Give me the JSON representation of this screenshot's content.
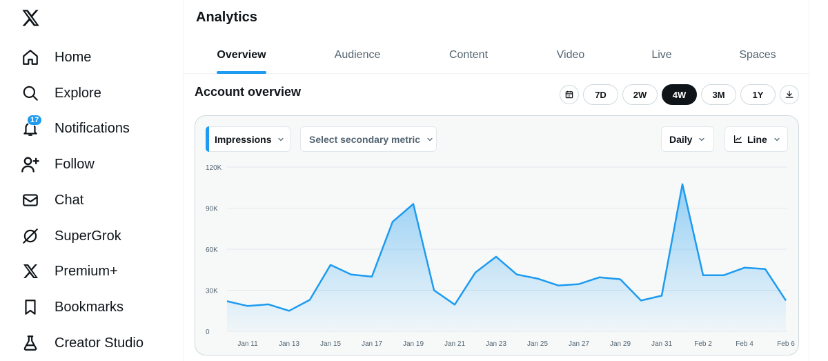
{
  "sidebar": {
    "logo": "x-logo-icon",
    "items": [
      {
        "label": "Home",
        "icon": "home-icon"
      },
      {
        "label": "Explore",
        "icon": "search-icon"
      },
      {
        "label": "Notifications",
        "icon": "bell-icon",
        "badge": "17"
      },
      {
        "label": "Follow",
        "icon": "add-user-icon"
      },
      {
        "label": "Chat",
        "icon": "mail-icon"
      },
      {
        "label": "SuperGrok",
        "icon": "grok-icon"
      },
      {
        "label": "Premium+",
        "icon": "x-logo-icon"
      },
      {
        "label": "Bookmarks",
        "icon": "bookmark-icon"
      },
      {
        "label": "Creator Studio",
        "icon": "flask-icon"
      }
    ]
  },
  "header": {
    "title": "Analytics"
  },
  "tabs": [
    {
      "label": "Overview",
      "active": true
    },
    {
      "label": "Audience",
      "active": false
    },
    {
      "label": "Content",
      "active": false
    },
    {
      "label": "Video",
      "active": false
    },
    {
      "label": "Live",
      "active": false
    },
    {
      "label": "Spaces",
      "active": false
    }
  ],
  "overview": {
    "title": "Account overview",
    "ranges": [
      "7D",
      "2W",
      "4W",
      "3M",
      "1Y"
    ],
    "active_range": "4W",
    "primary_metric": "Impressions",
    "secondary_metric_placeholder": "Select secondary metric",
    "granularity": "Daily",
    "chart_style": "Line"
  },
  "colors": {
    "accent": "#1d9bf0",
    "text": "#0f1419",
    "muted": "#536471"
  },
  "chart_data": {
    "type": "area",
    "title": "",
    "xlabel": "",
    "ylabel": "",
    "ylim": [
      0,
      120000
    ],
    "y_ticks": [
      0,
      30000,
      60000,
      90000,
      120000
    ],
    "y_tick_labels": [
      "0",
      "30K",
      "60K",
      "90K",
      "120K"
    ],
    "x_tick_labels": [
      "Jan 11",
      "Jan 13",
      "Jan 15",
      "Jan 17",
      "Jan 19",
      "Jan 21",
      "Jan 23",
      "Jan 25",
      "Jan 27",
      "Jan 29",
      "Jan 31",
      "Feb 2",
      "Feb 4",
      "Feb 6"
    ],
    "grid": true,
    "series": [
      {
        "name": "Impressions",
        "x": [
          "Jan 10",
          "Jan 11",
          "Jan 12",
          "Jan 13",
          "Jan 14",
          "Jan 15",
          "Jan 16",
          "Jan 17",
          "Jan 18",
          "Jan 19",
          "Jan 20",
          "Jan 21",
          "Jan 22",
          "Jan 23",
          "Jan 24",
          "Jan 25",
          "Jan 26",
          "Jan 27",
          "Jan 28",
          "Jan 29",
          "Jan 30",
          "Jan 31",
          "Feb 1",
          "Feb 2",
          "Feb 3",
          "Feb 4",
          "Feb 5",
          "Feb 6"
        ],
        "values": [
          22000,
          18500,
          19700,
          15000,
          23000,
          48500,
          41500,
          40000,
          80000,
          93000,
          30000,
          19500,
          43000,
          54500,
          41500,
          38500,
          33500,
          34500,
          39500,
          38000,
          22500,
          26000,
          107500,
          41000,
          41000,
          46500,
          45500,
          22500
        ]
      }
    ]
  }
}
